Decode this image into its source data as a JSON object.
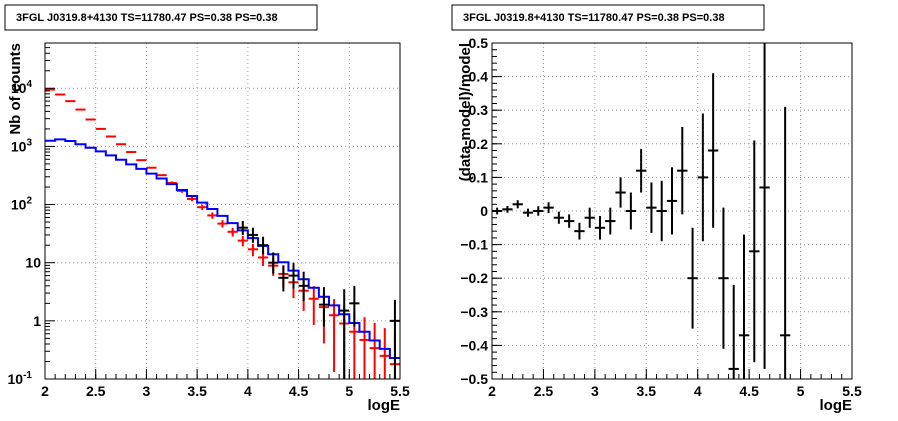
{
  "chart_data": [
    {
      "type": "line",
      "title": "3FGL J0319.8+4130 TS=11780.47 PS=0.38 PS=0.38",
      "xlabel": "logE",
      "ylabel": "Nb of counts",
      "xlim": [
        2,
        5.5
      ],
      "ylim": [
        0.1,
        60000
      ],
      "yscale": "log",
      "grid": true,
      "x_ticks": [
        "2",
        "2.5",
        "3",
        "3.5",
        "4",
        "4.5",
        "5",
        "5.5"
      ],
      "y_ticks": [
        {
          "base": "10",
          "exp": "-1",
          "v": 0.1
        },
        {
          "base": "1",
          "exp": "",
          "v": 1
        },
        {
          "base": "10",
          "exp": "",
          "v": 10
        },
        {
          "base": "10",
          "exp": "2",
          "v": 100
        },
        {
          "base": "10",
          "exp": "3",
          "v": 1000
        },
        {
          "base": "10",
          "exp": "4",
          "v": 10000
        }
      ],
      "bin_edges": [
        2.0,
        2.1,
        2.2,
        2.3,
        2.4,
        2.5,
        2.6,
        2.7,
        2.8,
        2.9,
        3.0,
        3.1,
        3.2,
        3.3,
        3.4,
        3.5,
        3.6,
        3.7,
        3.8,
        3.9,
        4.0,
        4.1,
        4.2,
        4.3,
        4.4,
        4.5,
        4.6,
        4.7,
        4.8,
        4.9,
        5.0,
        5.1,
        5.2,
        5.3,
        5.4,
        5.5
      ],
      "series": [
        {
          "name": "",
          "style": "error-bars",
          "color": "#ff0000",
          "values": [
            9500,
            7800,
            6000,
            4300,
            2900,
            2000,
            1480,
            1090,
            800,
            580,
            430,
            320,
            235,
            172,
            125,
            90,
            65,
            47,
            34,
            24,
            17,
            12.3,
            8.9,
            6.4,
            4.6,
            3.3,
            2.4,
            1.72,
            1.25,
            0.9,
            0.65,
            0.47,
            0.34,
            0.25,
            0.18
          ]
        },
        {
          "name": "",
          "style": "step",
          "color": "#0000ff",
          "values": [
            1250,
            1320,
            1240,
            1090,
            950,
            820,
            700,
            590,
            490,
            410,
            340,
            280,
            225,
            178,
            140,
            108,
            84,
            64,
            48,
            36,
            26.5,
            19.5,
            14,
            10.2,
            7.3,
            5.2,
            3.7,
            2.6,
            1.85,
            1.3,
            0.92,
            0.65,
            0.46,
            0.33,
            0.23
          ]
        },
        {
          "name": "",
          "style": "error-bars",
          "color": "#000000",
          "points": [
            {
              "x": 3.95,
              "y": 40,
              "ylo": 30,
              "yhi": 52
            },
            {
              "x": 4.05,
              "y": 30,
              "ylo": 22,
              "yhi": 40
            },
            {
              "x": 4.15,
              "y": 20,
              "ylo": 14,
              "yhi": 28
            },
            {
              "x": 4.25,
              "y": 10,
              "ylo": 6.5,
              "yhi": 15
            },
            {
              "x": 4.35,
              "y": 5.5,
              "ylo": 3.2,
              "yhi": 9
            },
            {
              "x": 4.45,
              "y": 6,
              "ylo": 3.6,
              "yhi": 10
            },
            {
              "x": 4.55,
              "y": 4,
              "ylo": 2.2,
              "yhi": 7
            },
            {
              "x": 4.75,
              "y": 1.9,
              "ylo": 0.8,
              "yhi": 3.8
            },
            {
              "x": 4.95,
              "y": 1.5,
              "ylo": 0.1,
              "yhi": 3.5
            },
            {
              "x": 5.05,
              "y": 2,
              "ylo": 0.8,
              "yhi": 4
            },
            {
              "x": 5.45,
              "y": 1,
              "ylo": 0.1,
              "yhi": 2.3
            }
          ]
        }
      ]
    },
    {
      "type": "scatter",
      "title": "3FGL J0319.8+4130 TS=11780.47 PS=0.38 PS=0.38",
      "xlabel": "logE",
      "ylabel": "(data-model)/model",
      "xlim": [
        2,
        5.5
      ],
      "ylim": [
        -0.5,
        0.5
      ],
      "grid": true,
      "x_ticks": [
        "2",
        "2.5",
        "3",
        "3.5",
        "4",
        "4.5",
        "5",
        "5.5"
      ],
      "y_ticks": [
        "−0.5",
        "−0.4",
        "−0.3",
        "−0.2",
        "−0.1",
        "0",
        "0.1",
        "0.2",
        "0.3",
        "0.4",
        "0.5"
      ],
      "y_tick_values": [
        -0.5,
        -0.4,
        -0.3,
        -0.2,
        -0.1,
        0,
        0.1,
        0.2,
        0.3,
        0.4,
        0.5
      ],
      "points": [
        {
          "x": 2.05,
          "y": 0.0,
          "err": 0.01
        },
        {
          "x": 2.15,
          "y": 0.005,
          "err": 0.01
        },
        {
          "x": 2.25,
          "y": 0.02,
          "err": 0.012
        },
        {
          "x": 2.35,
          "y": -0.005,
          "err": 0.012
        },
        {
          "x": 2.45,
          "y": 0.0,
          "err": 0.014
        },
        {
          "x": 2.55,
          "y": 0.01,
          "err": 0.016
        },
        {
          "x": 2.65,
          "y": -0.02,
          "err": 0.018
        },
        {
          "x": 2.75,
          "y": -0.03,
          "err": 0.02
        },
        {
          "x": 2.85,
          "y": -0.06,
          "err": 0.025
        },
        {
          "x": 2.95,
          "y": -0.02,
          "err": 0.03
        },
        {
          "x": 3.05,
          "y": -0.05,
          "err": 0.035
        },
        {
          "x": 3.15,
          "y": -0.03,
          "err": 0.04
        },
        {
          "x": 3.25,
          "y": 0.055,
          "err": 0.045
        },
        {
          "x": 3.35,
          "y": 0.0,
          "err": 0.055
        },
        {
          "x": 3.45,
          "y": 0.12,
          "err": 0.065
        },
        {
          "x": 3.55,
          "y": 0.01,
          "err": 0.075
        },
        {
          "x": 3.65,
          "y": 0.0,
          "err": 0.09
        },
        {
          "x": 3.75,
          "y": 0.03,
          "err": 0.1
        },
        {
          "x": 3.85,
          "y": 0.12,
          "err": 0.13
        },
        {
          "x": 3.95,
          "y": -0.2,
          "err": 0.15
        },
        {
          "x": 4.05,
          "y": 0.1,
          "err": 0.19
        },
        {
          "x": 4.15,
          "y": 0.18,
          "err": 0.23
        },
        {
          "x": 4.25,
          "y": -0.2,
          "err": 0.21
        },
        {
          "x": 4.35,
          "y": -0.47,
          "err": 0.25
        },
        {
          "x": 4.45,
          "y": -0.37,
          "err": 0.3
        },
        {
          "x": 4.55,
          "y": -0.12,
          "err": 0.33
        },
        {
          "x": 4.65,
          "y": 0.07,
          "err": 0.54
        },
        {
          "x": 4.85,
          "y": -0.37,
          "err": 0.68
        }
      ]
    }
  ]
}
